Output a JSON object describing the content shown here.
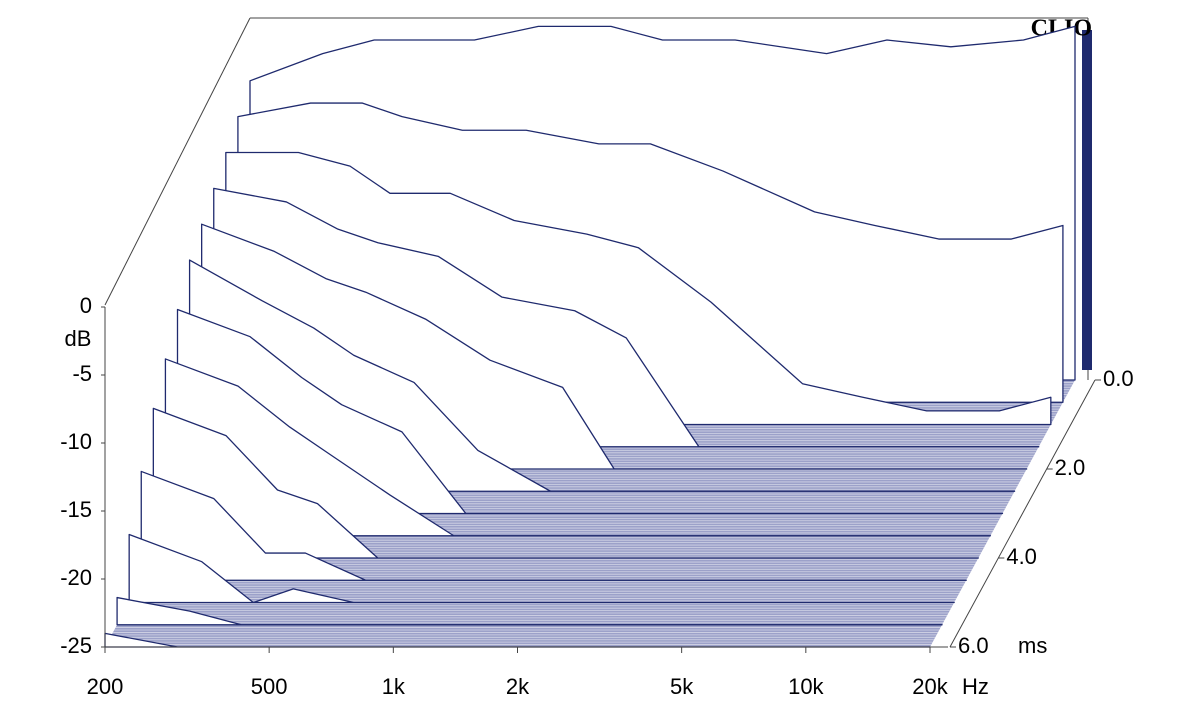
{
  "chart_data": {
    "type": "waterfall",
    "brand": "CLIO",
    "y_label": "dB",
    "x_unit": "Hz",
    "z_unit": "ms",
    "color": "#1f2a6e",
    "floor_color": "#9ca1c9",
    "log_x": true,
    "x": [
      200,
      300,
      400,
      500,
      700,
      1000,
      1500,
      2000,
      3000,
      5000,
      7000,
      10000,
      15000,
      20000
    ],
    "xlim": [
      200,
      20000
    ],
    "xticks": [
      200,
      500,
      {
        "value": 1000,
        "label": "1k"
      },
      {
        "value": 2000,
        "label": "2k"
      },
      {
        "value": 5000,
        "label": "5k"
      },
      {
        "value": 10000,
        "label": "10k"
      },
      {
        "value": 20000,
        "label": "20k"
      }
    ],
    "ylim": [
      -25,
      0
    ],
    "yticks": [
      0,
      -5,
      -10,
      -15,
      -20,
      -25
    ],
    "zlim": [
      0,
      6
    ],
    "zticks": [
      {
        "value": 0,
        "label": "0.0"
      },
      {
        "value": 2,
        "label": "2.0"
      },
      {
        "value": 4,
        "label": "4.0"
      },
      {
        "value": 6,
        "label": "6.0"
      }
    ],
    "series": [
      {
        "time": 0,
        "values": [
          -3,
          -1,
          0,
          0,
          0,
          1,
          1,
          0,
          0,
          -1,
          0,
          -0.5,
          0,
          1
        ]
      },
      {
        "time": 0.5,
        "values": [
          -4,
          -3,
          -3,
          -4,
          -5,
          -5,
          -6,
          -6,
          -8,
          -11,
          -12,
          -13,
          -13,
          -12
        ]
      },
      {
        "time": 1,
        "values": [
          -5,
          -5,
          -6,
          -8,
          -8,
          -10,
          -11,
          -12,
          -16,
          -22,
          -23,
          -24,
          -24,
          -23
        ]
      },
      {
        "time": 1.5,
        "values": [
          -6,
          -7,
          -9,
          -10,
          -11,
          -14,
          -15,
          -17,
          -25,
          -25,
          -25,
          -25,
          -25,
          -25
        ]
      },
      {
        "time": 2,
        "values": [
          -7,
          -9,
          -11,
          -12,
          -14,
          -17,
          -19,
          -25,
          -25,
          -25,
          -25,
          -25,
          -25,
          -25
        ]
      },
      {
        "time": 2.5,
        "values": [
          -8,
          -11,
          -13,
          -15,
          -17,
          -22,
          -25,
          -25,
          -25,
          -25,
          -25,
          -25,
          -25,
          -25
        ]
      },
      {
        "time": 3,
        "values": [
          -10,
          -12,
          -15,
          -17,
          -19,
          -25,
          -25,
          -25,
          -25,
          -25,
          -25,
          -25,
          -25,
          -25
        ]
      },
      {
        "time": 3.5,
        "values": [
          -12,
          -14,
          -17,
          -19,
          -22,
          -25,
          -25,
          -25,
          -25,
          -25,
          -25,
          -25,
          -25,
          -25
        ]
      },
      {
        "time": 4,
        "values": [
          -14,
          -16,
          -20,
          -21,
          -25,
          -25,
          -25,
          -25,
          -25,
          -25,
          -25,
          -25,
          -25,
          -25
        ]
      },
      {
        "time": 4.5,
        "values": [
          -17,
          -19,
          -23,
          -23,
          -25,
          -25,
          -25,
          -25,
          -25,
          -25,
          -25,
          -25,
          -25,
          -25
        ]
      },
      {
        "time": 5,
        "values": [
          -20,
          -22,
          -25,
          -24,
          -25,
          -25,
          -25,
          -25,
          -25,
          -25,
          -25,
          -25,
          -25,
          -25
        ]
      },
      {
        "time": 5.5,
        "values": [
          -23,
          -24,
          -25,
          -25,
          -25,
          -25,
          -25,
          -25,
          -25,
          -25,
          -25,
          -25,
          -25,
          -25
        ]
      },
      {
        "time": 6,
        "values": [
          -24,
          -25,
          -25,
          -25,
          -25,
          -25,
          -25,
          -25,
          -25,
          -25,
          -25,
          -25,
          -25,
          -25
        ]
      }
    ]
  }
}
